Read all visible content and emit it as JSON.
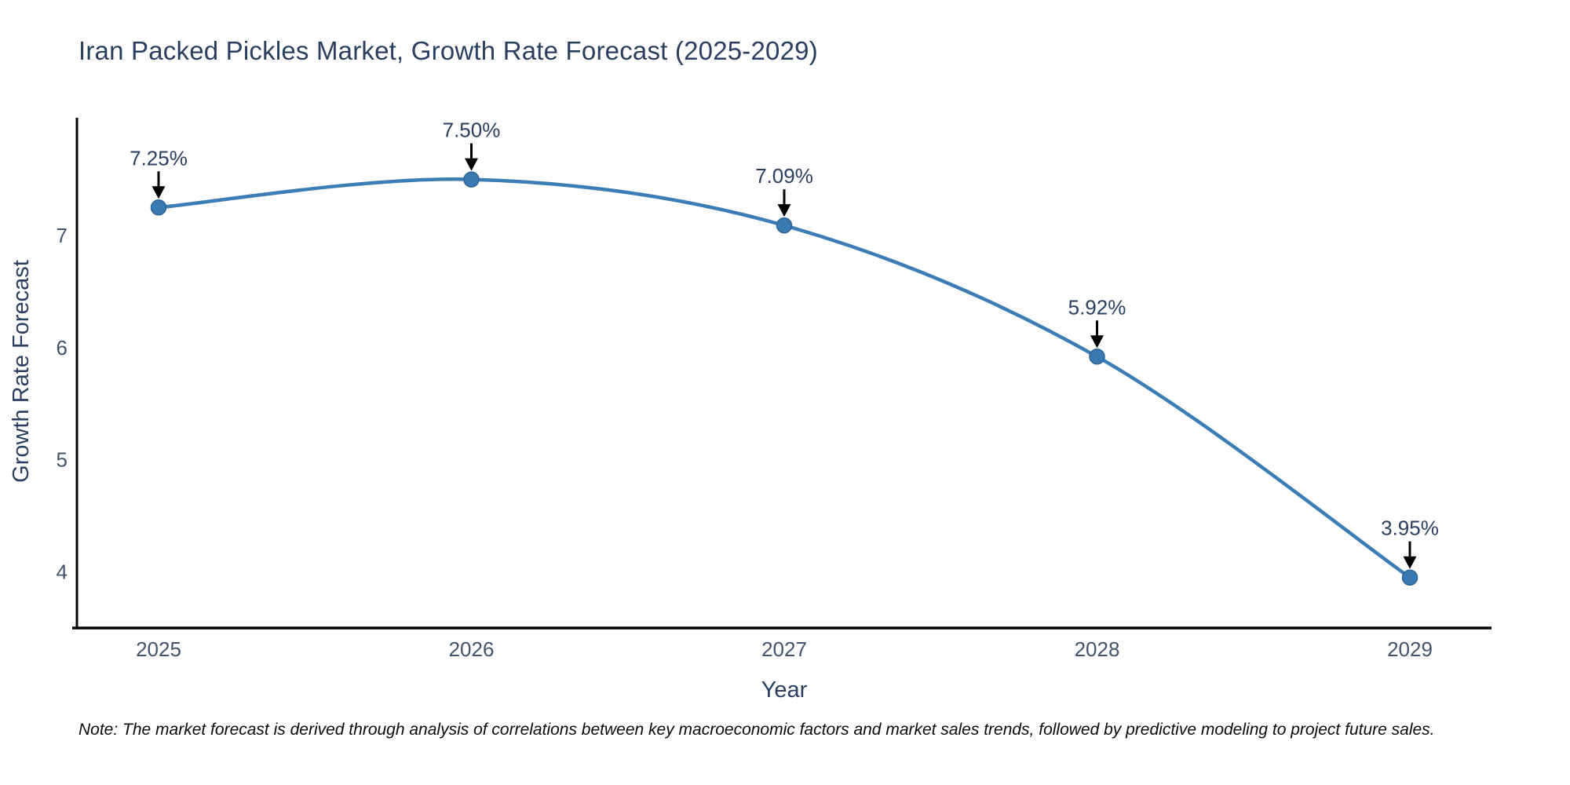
{
  "title": "Iran Packed Pickles Market, Growth Rate Forecast (2025-2029)",
  "note": "Note: The market forecast is derived through analysis of correlations between key macroeconomic factors and market sales trends, followed by predictive modeling to project future sales.",
  "colors": {
    "line": "#3c7db6",
    "marker_fill": "#3a7ab3",
    "marker_stroke": "#2e6495",
    "axis_line": "#000000",
    "tick_text": "#42546b",
    "title_text": "#2a3f5f",
    "annotation_text": "#2a3f5f",
    "annotation_arrow": "#000000",
    "background": "#ffffff"
  },
  "chart_data": {
    "type": "line",
    "title": "Iran Packed Pickles Market, Growth Rate Forecast (2025-2029)",
    "x": [
      2025,
      2026,
      2027,
      2028,
      2029
    ],
    "values": [
      7.25,
      7.5,
      7.09,
      5.92,
      3.95
    ],
    "point_labels": [
      "7.25%",
      "7.50%",
      "7.09%",
      "5.92%",
      "3.95%"
    ],
    "xlabel": "Year",
    "ylabel": "Growth Rate Forecast",
    "xticks": [
      "2025",
      "2026",
      "2027",
      "2028",
      "2029"
    ],
    "yticks": [
      4,
      5,
      6,
      7
    ],
    "ylim": [
      3.5,
      8.05
    ],
    "grid": false,
    "legend": false,
    "line_shape": "spline",
    "markers": true,
    "annotations": "value labels above each point with downward black arrows"
  }
}
